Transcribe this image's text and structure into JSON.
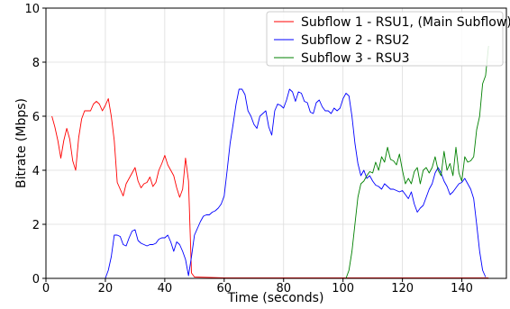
{
  "chart_data": {
    "type": "line",
    "title": "",
    "xlabel": "Time (seconds)",
    "ylabel": "Bitrate (Mbps)",
    "xlim": [
      0,
      155
    ],
    "ylim": [
      0,
      10
    ],
    "x_ticks": [
      0,
      20,
      40,
      60,
      80,
      100,
      120,
      140
    ],
    "y_ticks": [
      0,
      2,
      4,
      6,
      8,
      10
    ],
    "grid": true,
    "legend_position": "top-right",
    "series": [
      {
        "name": "Subflow 1 - RSU1, (Main Subflow)",
        "color": "#ff0000",
        "points": [
          [
            2,
            6.0
          ],
          [
            3,
            5.6
          ],
          [
            4,
            5.1
          ],
          [
            5,
            4.45
          ],
          [
            6,
            5.1
          ],
          [
            7,
            5.55
          ],
          [
            8,
            5.15
          ],
          [
            9,
            4.35
          ],
          [
            10,
            4.0
          ],
          [
            11,
            5.2
          ],
          [
            12,
            5.9
          ],
          [
            13,
            6.2
          ],
          [
            14,
            6.2
          ],
          [
            15,
            6.2
          ],
          [
            16,
            6.45
          ],
          [
            17,
            6.55
          ],
          [
            18,
            6.45
          ],
          [
            19,
            6.2
          ],
          [
            20,
            6.4
          ],
          [
            21,
            6.65
          ],
          [
            22,
            6.0
          ],
          [
            23,
            5.1
          ],
          [
            24,
            3.55
          ],
          [
            25,
            3.3
          ],
          [
            26,
            3.05
          ],
          [
            27,
            3.5
          ],
          [
            28,
            3.7
          ],
          [
            29,
            3.9
          ],
          [
            30,
            4.1
          ],
          [
            31,
            3.6
          ],
          [
            32,
            3.35
          ],
          [
            33,
            3.5
          ],
          [
            34,
            3.55
          ],
          [
            35,
            3.75
          ],
          [
            36,
            3.4
          ],
          [
            37,
            3.55
          ],
          [
            38,
            4.0
          ],
          [
            39,
            4.25
          ],
          [
            40,
            4.55
          ],
          [
            41,
            4.2
          ],
          [
            42,
            4.0
          ],
          [
            43,
            3.8
          ],
          [
            44,
            3.35
          ],
          [
            45,
            3.0
          ],
          [
            46,
            3.3
          ],
          [
            47,
            4.45
          ],
          [
            48,
            3.6
          ],
          [
            49,
            0.2
          ],
          [
            50,
            0.05
          ],
          [
            60,
            0.02
          ],
          [
            80,
            0.02
          ],
          [
            100,
            0.02
          ],
          [
            120,
            0.02
          ],
          [
            140,
            0.02
          ],
          [
            149,
            0.02
          ]
        ]
      },
      {
        "name": "Subflow 2 - RSU2",
        "color": "#0000ff",
        "points": [
          [
            2,
            0.0
          ],
          [
            20,
            0.0
          ],
          [
            21,
            0.3
          ],
          [
            22,
            0.8
          ],
          [
            23,
            1.6
          ],
          [
            24,
            1.6
          ],
          [
            25,
            1.55
          ],
          [
            26,
            1.25
          ],
          [
            27,
            1.2
          ],
          [
            28,
            1.5
          ],
          [
            29,
            1.75
          ],
          [
            30,
            1.8
          ],
          [
            31,
            1.4
          ],
          [
            32,
            1.3
          ],
          [
            33,
            1.25
          ],
          [
            34,
            1.2
          ],
          [
            35,
            1.25
          ],
          [
            36,
            1.25
          ],
          [
            37,
            1.3
          ],
          [
            38,
            1.45
          ],
          [
            39,
            1.5
          ],
          [
            40,
            1.5
          ],
          [
            41,
            1.6
          ],
          [
            42,
            1.35
          ],
          [
            43,
            1.0
          ],
          [
            44,
            1.35
          ],
          [
            45,
            1.25
          ],
          [
            46,
            1.0
          ],
          [
            47,
            0.7
          ],
          [
            48,
            0.1
          ],
          [
            49,
            0.8
          ],
          [
            50,
            1.6
          ],
          [
            51,
            1.85
          ],
          [
            52,
            2.1
          ],
          [
            53,
            2.3
          ],
          [
            54,
            2.35
          ],
          [
            55,
            2.35
          ],
          [
            56,
            2.45
          ],
          [
            57,
            2.5
          ],
          [
            58,
            2.6
          ],
          [
            59,
            2.75
          ],
          [
            60,
            3.05
          ],
          [
            61,
            4.0
          ],
          [
            62,
            5.0
          ],
          [
            63,
            5.7
          ],
          [
            64,
            6.45
          ],
          [
            65,
            7.0
          ],
          [
            66,
            7.0
          ],
          [
            67,
            6.8
          ],
          [
            68,
            6.2
          ],
          [
            69,
            6.0
          ],
          [
            70,
            5.7
          ],
          [
            71,
            5.55
          ],
          [
            72,
            6.0
          ],
          [
            73,
            6.1
          ],
          [
            74,
            6.2
          ],
          [
            75,
            5.6
          ],
          [
            76,
            5.3
          ],
          [
            77,
            6.2
          ],
          [
            78,
            6.45
          ],
          [
            79,
            6.4
          ],
          [
            80,
            6.3
          ],
          [
            81,
            6.6
          ],
          [
            82,
            7.0
          ],
          [
            83,
            6.9
          ],
          [
            84,
            6.55
          ],
          [
            85,
            6.9
          ],
          [
            86,
            6.85
          ],
          [
            87,
            6.55
          ],
          [
            88,
            6.5
          ],
          [
            89,
            6.15
          ],
          [
            90,
            6.1
          ],
          [
            91,
            6.5
          ],
          [
            92,
            6.6
          ],
          [
            93,
            6.35
          ],
          [
            94,
            6.2
          ],
          [
            95,
            6.2
          ],
          [
            96,
            6.1
          ],
          [
            97,
            6.3
          ],
          [
            98,
            6.2
          ],
          [
            99,
            6.3
          ],
          [
            100,
            6.65
          ],
          [
            101,
            6.85
          ],
          [
            102,
            6.75
          ],
          [
            103,
            6.0
          ],
          [
            104,
            5.0
          ],
          [
            105,
            4.25
          ],
          [
            106,
            3.8
          ],
          [
            107,
            4.0
          ],
          [
            108,
            3.7
          ],
          [
            109,
            3.8
          ],
          [
            110,
            3.6
          ],
          [
            111,
            3.45
          ],
          [
            112,
            3.4
          ],
          [
            113,
            3.3
          ],
          [
            114,
            3.5
          ],
          [
            115,
            3.4
          ],
          [
            116,
            3.3
          ],
          [
            117,
            3.3
          ],
          [
            118,
            3.25
          ],
          [
            119,
            3.2
          ],
          [
            120,
            3.25
          ],
          [
            121,
            3.1
          ],
          [
            122,
            2.95
          ],
          [
            123,
            3.2
          ],
          [
            124,
            2.75
          ],
          [
            125,
            2.45
          ],
          [
            126,
            2.6
          ],
          [
            127,
            2.7
          ],
          [
            128,
            3.0
          ],
          [
            129,
            3.3
          ],
          [
            130,
            3.5
          ],
          [
            131,
            3.9
          ],
          [
            132,
            4.1
          ],
          [
            133,
            3.9
          ],
          [
            134,
            3.6
          ],
          [
            135,
            3.4
          ],
          [
            136,
            3.1
          ],
          [
            137,
            3.2
          ],
          [
            138,
            3.35
          ],
          [
            139,
            3.5
          ],
          [
            140,
            3.55
          ],
          [
            141,
            3.7
          ],
          [
            142,
            3.5
          ],
          [
            143,
            3.3
          ],
          [
            144,
            2.95
          ],
          [
            145,
            2.0
          ],
          [
            146,
            1.0
          ],
          [
            147,
            0.3
          ],
          [
            148,
            0.05
          ]
        ]
      },
      {
        "name": "Subflow 3 - RSU3",
        "color": "#008000",
        "points": [
          [
            2,
            0.0
          ],
          [
            101,
            0.0
          ],
          [
            102,
            0.3
          ],
          [
            103,
            1.0
          ],
          [
            104,
            2.0
          ],
          [
            105,
            3.0
          ],
          [
            106,
            3.5
          ],
          [
            107,
            3.6
          ],
          [
            108,
            3.8
          ],
          [
            109,
            3.95
          ],
          [
            110,
            3.9
          ],
          [
            111,
            4.3
          ],
          [
            112,
            4.0
          ],
          [
            113,
            4.5
          ],
          [
            114,
            4.3
          ],
          [
            115,
            4.85
          ],
          [
            116,
            4.4
          ],
          [
            117,
            4.35
          ],
          [
            118,
            4.2
          ],
          [
            119,
            4.6
          ],
          [
            120,
            4.0
          ],
          [
            121,
            3.5
          ],
          [
            122,
            3.7
          ],
          [
            123,
            3.5
          ],
          [
            124,
            3.95
          ],
          [
            125,
            4.1
          ],
          [
            126,
            3.5
          ],
          [
            127,
            4.0
          ],
          [
            128,
            4.1
          ],
          [
            129,
            3.9
          ],
          [
            130,
            4.1
          ],
          [
            131,
            4.5
          ],
          [
            132,
            4.0
          ],
          [
            133,
            3.8
          ],
          [
            134,
            4.7
          ],
          [
            135,
            4.0
          ],
          [
            136,
            4.25
          ],
          [
            137,
            3.8
          ],
          [
            138,
            4.85
          ],
          [
            139,
            3.9
          ],
          [
            140,
            3.6
          ],
          [
            141,
            4.5
          ],
          [
            142,
            4.3
          ],
          [
            143,
            4.35
          ],
          [
            144,
            4.5
          ],
          [
            145,
            5.5
          ],
          [
            146,
            6.0
          ],
          [
            147,
            7.2
          ],
          [
            148,
            7.5
          ],
          [
            149,
            8.6
          ]
        ]
      }
    ]
  }
}
